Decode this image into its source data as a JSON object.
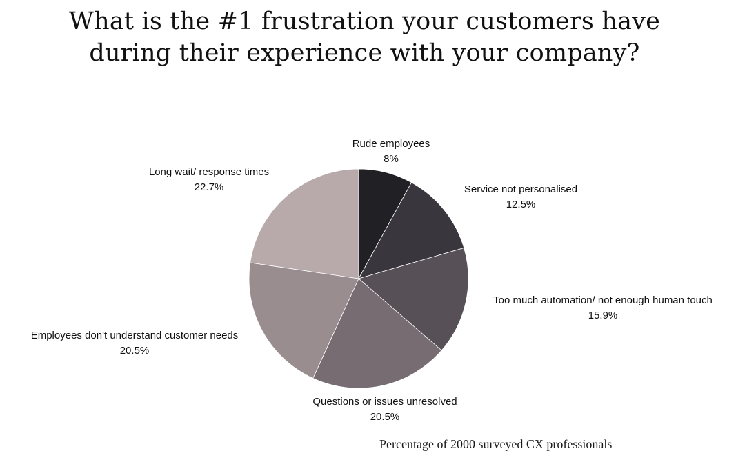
{
  "chart_data": {
    "type": "pie",
    "title_lines": [
      "What is the #1 frustration your customers have",
      "during their experience with your company?"
    ],
    "footnote": "Percentage of 2000 surveyed CX professionals",
    "start_angle_deg": 0,
    "direction": "clockwise",
    "slices": [
      {
        "label": "Rude employees",
        "value": 8,
        "value_label": "8%",
        "color": "#212125"
      },
      {
        "label": "Service not personalised",
        "value": 12.5,
        "value_label": "12.5%",
        "color": "#3a363d"
      },
      {
        "label": "Too much automation/ not enough human touch",
        "value": 15.9,
        "value_label": "15.9%",
        "color": "#575057"
      },
      {
        "label": "Questions or issues unresolved",
        "value": 20.5,
        "value_label": "20.5%",
        "color": "#776c72"
      },
      {
        "label": "Employees don't understand customer needs",
        "value": 20.5,
        "value_label": "20.5%",
        "color": "#998d90"
      },
      {
        "label": "Long wait/ response times",
        "value": 22.7,
        "value_label": "22.7%",
        "color": "#b8aaaa"
      }
    ]
  }
}
